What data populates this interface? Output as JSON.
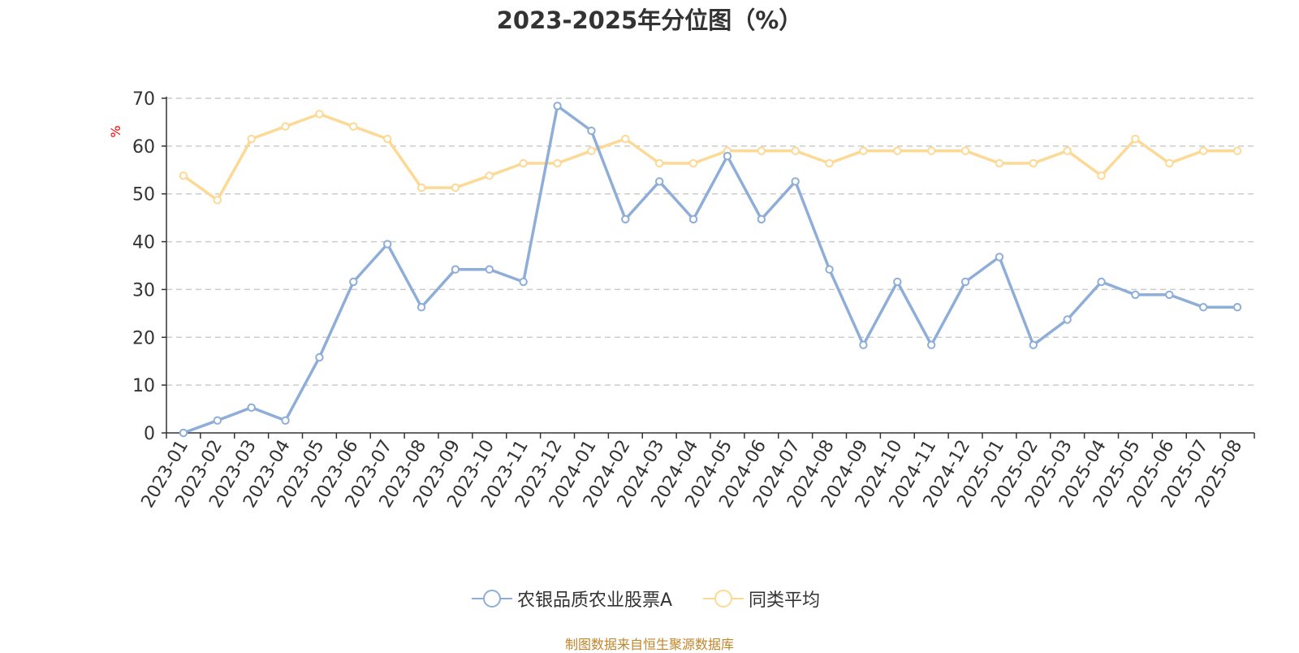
{
  "chart_data": {
    "type": "line",
    "title": "2023-2025年分位图（%）",
    "ylabel": "%",
    "ylim": [
      0,
      70
    ],
    "yticks": [
      0,
      10,
      20,
      30,
      40,
      50,
      60,
      70
    ],
    "grid": true,
    "legend_position": "bottom",
    "categories": [
      "2023-01",
      "2023-02",
      "2023-03",
      "2023-04",
      "2023-05",
      "2023-06",
      "2023-07",
      "2023-08",
      "2023-09",
      "2023-10",
      "2023-11",
      "2023-12",
      "2024-01",
      "2024-02",
      "2024-03",
      "2024-04",
      "2024-05",
      "2024-06",
      "2024-07",
      "2024-08",
      "2024-09",
      "2024-10",
      "2024-11",
      "2024-12",
      "2025-01",
      "2025-02",
      "2025-03",
      "2025-04",
      "2025-05",
      "2025-06",
      "2025-07",
      "2025-08"
    ],
    "series": [
      {
        "name": "农银品质农业股票A",
        "color": "#8eaed8",
        "values": [
          0,
          2.6,
          5.3,
          2.6,
          15.8,
          31.6,
          39.5,
          26.3,
          34.2,
          34.2,
          31.6,
          68.4,
          63.2,
          44.7,
          52.6,
          44.7,
          57.9,
          44.7,
          52.6,
          34.2,
          18.4,
          31.6,
          18.4,
          31.6,
          36.8,
          18.4,
          23.7,
          31.6,
          28.9,
          28.9,
          26.3,
          26.3
        ]
      },
      {
        "name": "同类平均",
        "color": "#fcd994",
        "values": [
          53.8,
          48.7,
          61.5,
          64.1,
          66.7,
          64.1,
          61.5,
          51.3,
          51.3,
          53.8,
          56.4,
          56.4,
          59.0,
          61.5,
          56.4,
          56.4,
          59.0,
          59.0,
          59.0,
          56.4,
          59.0,
          59.0,
          59.0,
          59.0,
          56.4,
          56.4,
          59.0,
          53.8,
          61.5,
          56.4,
          59.0,
          59.0
        ]
      }
    ]
  },
  "source_note": "制图数据来自恒生聚源数据库",
  "colors": {
    "axis": "#333333",
    "grid": "#cccccc",
    "ylabel": "#ff0000",
    "source": "#c0862b"
  }
}
